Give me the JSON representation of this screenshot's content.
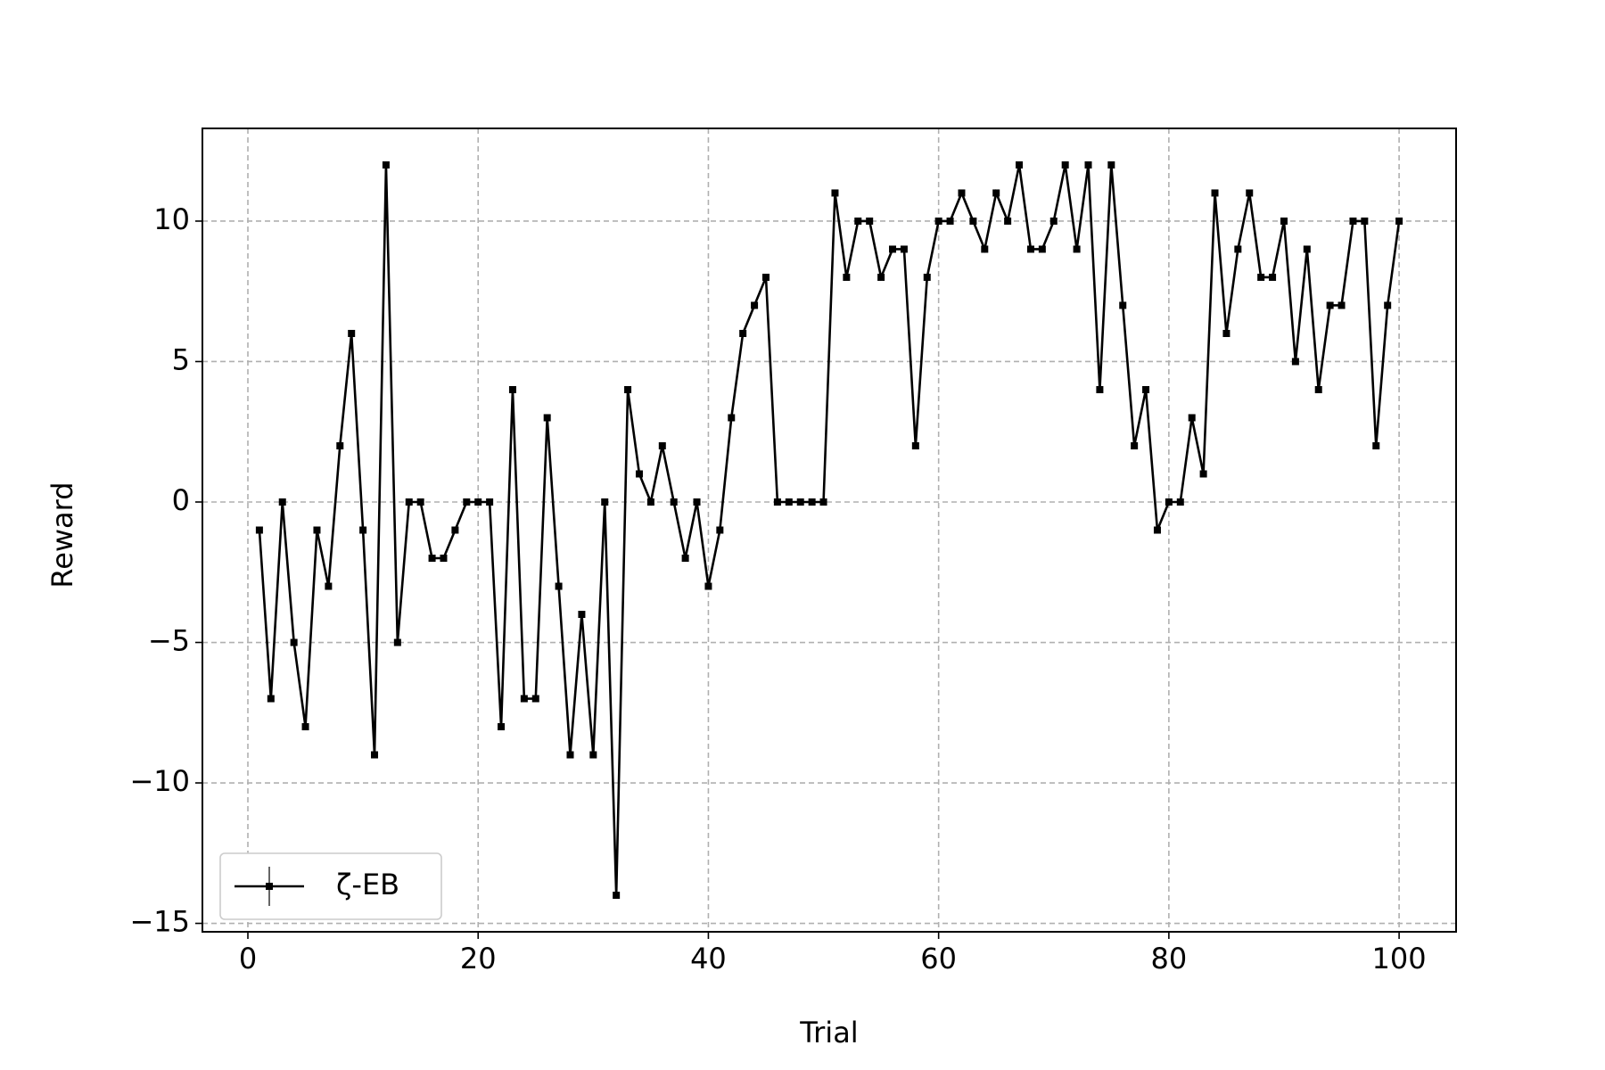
{
  "chart_data": {
    "type": "line",
    "xlabel": "Trial",
    "ylabel": "Reward",
    "x": [
      1,
      2,
      3,
      4,
      5,
      6,
      7,
      8,
      9,
      10,
      11,
      12,
      13,
      14,
      15,
      16,
      17,
      18,
      19,
      20,
      21,
      22,
      23,
      24,
      25,
      26,
      27,
      28,
      29,
      30,
      31,
      32,
      33,
      34,
      35,
      36,
      37,
      38,
      39,
      40,
      41,
      42,
      43,
      44,
      45,
      46,
      47,
      48,
      49,
      50,
      51,
      52,
      53,
      54,
      55,
      56,
      57,
      58,
      59,
      60,
      61,
      62,
      63,
      64,
      65,
      66,
      67,
      68,
      69,
      70,
      71,
      72,
      73,
      74,
      75,
      76,
      77,
      78,
      79,
      80,
      81,
      82,
      83,
      84,
      85,
      86,
      87,
      88,
      89,
      90,
      91,
      92,
      93,
      94,
      95,
      96,
      97,
      98,
      99,
      100
    ],
    "series": [
      {
        "name": "ζ-EB",
        "color": "#000000",
        "values": [
          -1,
          -7,
          0,
          -5,
          -8,
          -1,
          -3,
          2,
          6,
          -1,
          -9,
          12,
          -5,
          0,
          0,
          -2,
          -2,
          -1,
          0,
          0,
          0,
          -8,
          4,
          -7,
          -7,
          3,
          -3,
          -9,
          -4,
          -9,
          0,
          -14,
          4,
          1,
          0,
          2,
          0,
          -2,
          0,
          -3,
          -1,
          3,
          6,
          7,
          8,
          0,
          0,
          0,
          0,
          0,
          11,
          8,
          10,
          10,
          8,
          9,
          9,
          2,
          8,
          10,
          10,
          11,
          10,
          9,
          11,
          10,
          12,
          9,
          9,
          10,
          12,
          9,
          12,
          4,
          12,
          7,
          2,
          4,
          -1,
          0,
          0,
          3,
          1,
          11,
          6,
          9,
          11,
          8,
          8,
          10,
          5,
          9,
          4,
          7,
          7,
          10,
          10,
          2,
          7,
          10
        ]
      }
    ],
    "xlim": [
      -3.95,
      104.95
    ],
    "xticks": [
      0,
      20,
      40,
      60,
      80,
      100
    ],
    "ylim": [
      -15.3,
      13.3
    ],
    "yticks": [
      {
        "value": -15,
        "label": "−15"
      },
      {
        "value": -10,
        "label": "−10"
      },
      {
        "value": -5,
        "label": "−5"
      },
      0,
      5,
      10
    ],
    "grid": true,
    "legend": "lower left"
  }
}
